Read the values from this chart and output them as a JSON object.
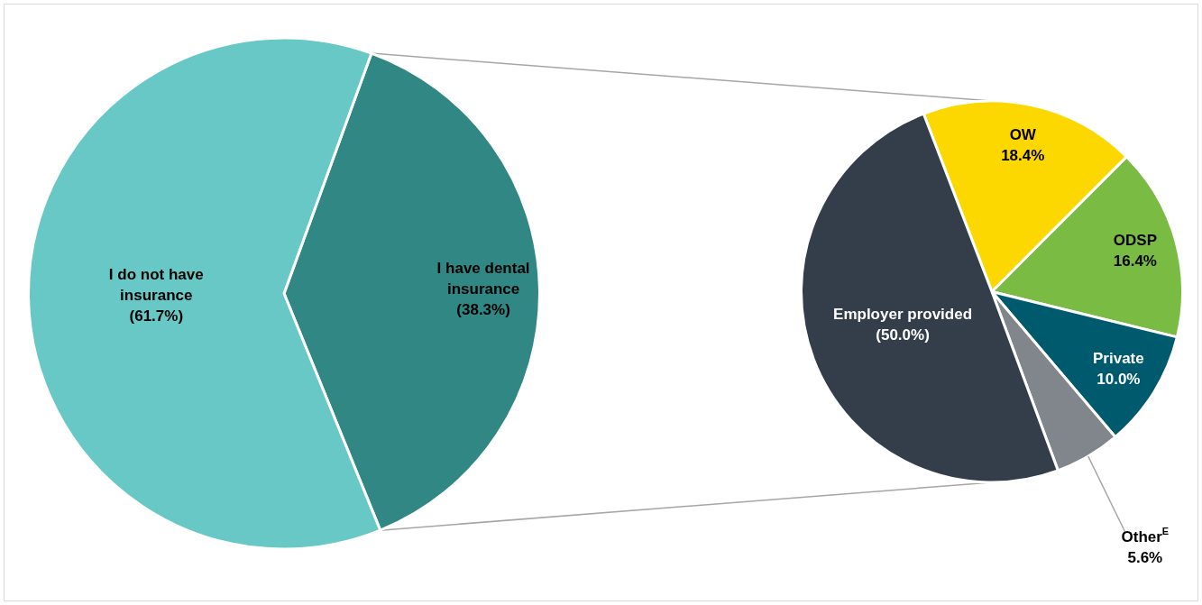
{
  "chart_data": [
    {
      "type": "pie",
      "categories": [
        "I have dental insurance",
        "I do not have insurance"
      ],
      "values": [
        38.3,
        61.7
      ],
      "colors": [
        "#318784",
        "#67c8c6"
      ],
      "value_labels": [
        "(38.3%)",
        "(61.7%)"
      ]
    },
    {
      "type": "pie",
      "categories": [
        "OW",
        "ODSP",
        "Private",
        "Other$^{E}$",
        "Employer provided"
      ],
      "values": [
        18.4,
        16.4,
        10.0,
        5.6,
        50.0
      ],
      "colors": [
        "#fdd800",
        "#79bb43",
        "#005a6e",
        "#80868b",
        "#343e4a"
      ],
      "value_labels": [
        "18.4%",
        "16.4%",
        "10.0%",
        "5.6%",
        "(50.0%)"
      ]
    }
  ]
}
